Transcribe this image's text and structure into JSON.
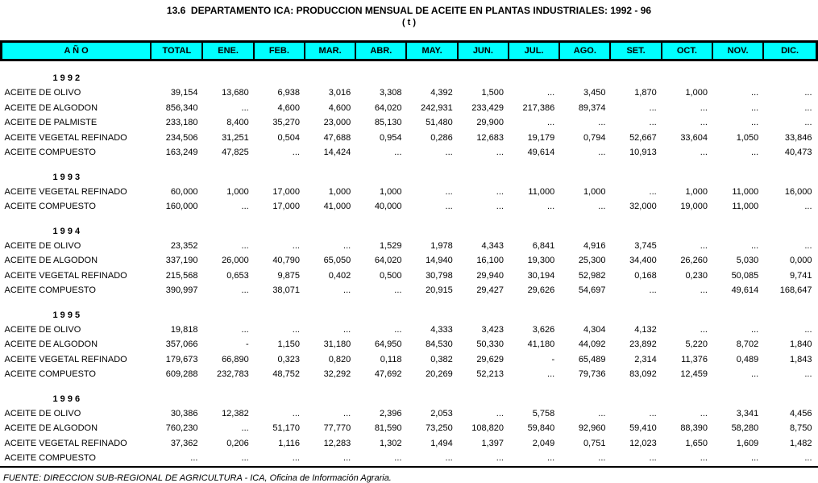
{
  "title": "13.6  DEPARTAMENTO ICA: PRODUCCION MENSUAL DE ACEITE EN PLANTAS INDUSTRIALES: 1992 - 96",
  "subtitle": "( t )",
  "colors": {
    "header_bg": "#00FFFF",
    "border": "#000000",
    "text": "#000000",
    "background": "#FFFFFF"
  },
  "table": {
    "columns": [
      "A Ñ O",
      "TOTAL",
      "ENE.",
      "FEB.",
      "MAR.",
      "ABR.",
      "MAY.",
      "JUN.",
      "JUL.",
      "AGO.",
      "SET.",
      "OCT.",
      "NOV.",
      "DIC."
    ],
    "sections": [
      {
        "year": "1 9 9 2",
        "rows": [
          {
            "label": "ACEITE DE OLIVO",
            "values": [
              "39,154",
              "13,680",
              "6,938",
              "3,016",
              "3,308",
              "4,392",
              "1,500",
              "...",
              "3,450",
              "1,870",
              "1,000",
              "...",
              "..."
            ]
          },
          {
            "label": "ACEITE DE ALGODON",
            "values": [
              "856,340",
              "...",
              "4,600",
              "4,600",
              "64,020",
              "242,931",
              "233,429",
              "217,386",
              "89,374",
              "...",
              "...",
              "...",
              "..."
            ]
          },
          {
            "label": "ACEITE DE PALMISTE",
            "values": [
              "233,180",
              "8,400",
              "35,270",
              "23,000",
              "85,130",
              "51,480",
              "29,900",
              "...",
              "...",
              "...",
              "...",
              "...",
              "..."
            ]
          },
          {
            "label": "ACEITE VEGETAL REFINADO",
            "values": [
              "234,506",
              "31,251",
              "0,504",
              "47,688",
              "0,954",
              "0,286",
              "12,683",
              "19,179",
              "0,794",
              "52,667",
              "33,604",
              "1,050",
              "33,846"
            ]
          },
          {
            "label": "ACEITE COMPUESTO",
            "values": [
              "163,249",
              "47,825",
              "...",
              "14,424",
              "...",
              "...",
              "...",
              "49,614",
              "...",
              "10,913",
              "...",
              "...",
              "40,473"
            ]
          }
        ]
      },
      {
        "year": "1 9 9 3",
        "rows": [
          {
            "label": "ACEITE VEGETAL REFINADO",
            "values": [
              "60,000",
              "1,000",
              "17,000",
              "1,000",
              "1,000",
              "...",
              "...",
              "11,000",
              "1,000",
              "...",
              "1,000",
              "11,000",
              "16,000"
            ]
          },
          {
            "label": "ACEITE COMPUESTO",
            "values": [
              "160,000",
              "...",
              "17,000",
              "41,000",
              "40,000",
              "...",
              "...",
              "...",
              "...",
              "32,000",
              "19,000",
              "11,000",
              "..."
            ]
          }
        ]
      },
      {
        "year": "1 9 9 4",
        "rows": [
          {
            "label": "ACEITE DE OLIVO",
            "values": [
              "23,352",
              "...",
              "...",
              "...",
              "1,529",
              "1,978",
              "4,343",
              "6,841",
              "4,916",
              "3,745",
              "...",
              "...",
              "..."
            ]
          },
          {
            "label": "ACEITE DE ALGODON",
            "values": [
              "337,190",
              "26,000",
              "40,790",
              "65,050",
              "64,020",
              "14,940",
              "16,100",
              "19,300",
              "25,300",
              "34,400",
              "26,260",
              "5,030",
              "0,000"
            ]
          },
          {
            "label": "ACEITE VEGETAL REFINADO",
            "values": [
              "215,568",
              "0,653",
              "9,875",
              "0,402",
              "0,500",
              "30,798",
              "29,940",
              "30,194",
              "52,982",
              "0,168",
              "0,230",
              "50,085",
              "9,741"
            ]
          },
          {
            "label": "ACEITE COMPUESTO",
            "values": [
              "390,997",
              "...",
              "38,071",
              "...",
              "...",
              "20,915",
              "29,427",
              "29,626",
              "54,697",
              "...",
              "...",
              "49,614",
              "168,647"
            ]
          }
        ]
      },
      {
        "year": "1 9 9 5",
        "rows": [
          {
            "label": "ACEITE DE OLIVO",
            "values": [
              "19,818",
              "...",
              "...",
              "...",
              "...",
              "4,333",
              "3,423",
              "3,626",
              "4,304",
              "4,132",
              "...",
              "...",
              "..."
            ]
          },
          {
            "label": "ACEITE DE ALGODON",
            "values": [
              "357,066",
              "-",
              "1,150",
              "31,180",
              "64,950",
              "84,530",
              "50,330",
              "41,180",
              "44,092",
              "23,892",
              "5,220",
              "8,702",
              "1,840"
            ]
          },
          {
            "label": "ACEITE VEGETAL REFINADO",
            "values": [
              "179,673",
              "66,890",
              "0,323",
              "0,820",
              "0,118",
              "0,382",
              "29,629",
              "-",
              "65,489",
              "2,314",
              "11,376",
              "0,489",
              "1,843"
            ]
          },
          {
            "label": "ACEITE COMPUESTO",
            "values": [
              "609,288",
              "232,783",
              "48,752",
              "32,292",
              "47,692",
              "20,269",
              "52,213",
              "...",
              "79,736",
              "83,092",
              "12,459",
              "...",
              "..."
            ]
          }
        ]
      },
      {
        "year": "1 9 9 6",
        "rows": [
          {
            "label": "ACEITE DE OLIVO",
            "values": [
              "30,386",
              "12,382",
              "...",
              "...",
              "2,396",
              "2,053",
              "...",
              "5,758",
              "...",
              "...",
              "...",
              "3,341",
              "4,456"
            ]
          },
          {
            "label": "ACEITE DE ALGODON",
            "values": [
              "760,230",
              "...",
              "51,170",
              "77,770",
              "81,590",
              "73,250",
              "108,820",
              "59,840",
              "92,960",
              "59,410",
              "88,390",
              "58,280",
              "8,750"
            ]
          },
          {
            "label": "ACEITE VEGETAL REFINADO",
            "values": [
              "37,362",
              "0,206",
              "1,116",
              "12,283",
              "1,302",
              "1,494",
              "1,397",
              "2,049",
              "0,751",
              "12,023",
              "1,650",
              "1,609",
              "1,482"
            ]
          },
          {
            "label": "ACEITE COMPUESTO",
            "values": [
              "...",
              "...",
              "...",
              "...",
              "...",
              "...",
              "...",
              "...",
              "...",
              "...",
              "...",
              "...",
              "..."
            ]
          }
        ]
      }
    ]
  },
  "footer": {
    "source": "FUENTE: DIRECCION SUB-REGIONAL DE AGRICULTURA - ICA, Oficina de Información Agraria."
  }
}
